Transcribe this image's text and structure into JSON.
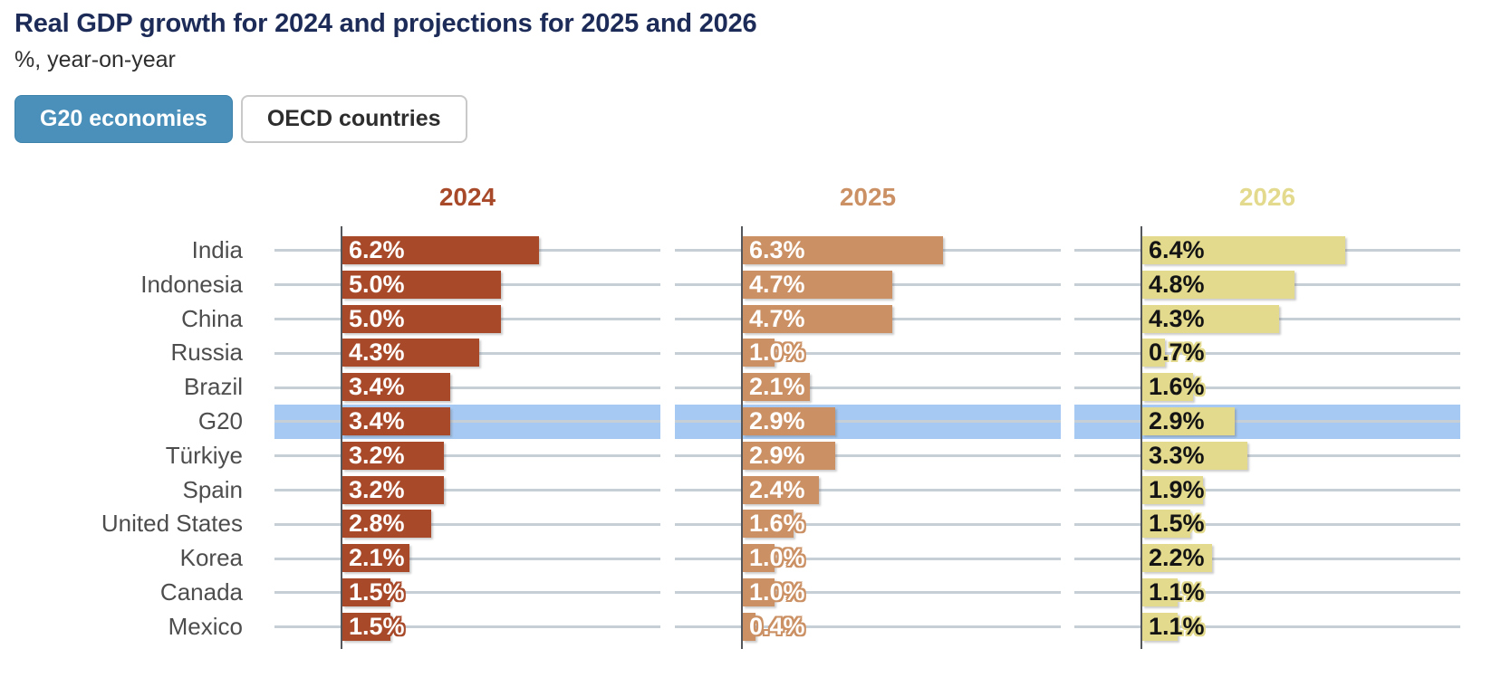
{
  "header": {
    "title": "Real GDP growth for 2024 and projections for 2025 and 2026",
    "subtitle": "%, year-on-year",
    "tabs": [
      {
        "label": "G20 economies",
        "active": true
      },
      {
        "label": "OECD countries",
        "active": false
      }
    ]
  },
  "chart_data": {
    "type": "bar",
    "orientation": "horizontal",
    "unit": "%",
    "categories": [
      "India",
      "Indonesia",
      "China",
      "Russia",
      "Brazil",
      "G20",
      "Türkiye",
      "Spain",
      "United States",
      "Korea",
      "Canada",
      "Mexico"
    ],
    "highlighted_category": "G20",
    "highlight_color": "#a6c9f3",
    "grid": true,
    "legend_position": "column-headers",
    "series": [
      {
        "name": "2024",
        "color": "#a84a2a",
        "label_text_color": "#ffffff",
        "values": [
          6.2,
          5.0,
          5.0,
          4.3,
          3.4,
          3.4,
          3.2,
          3.2,
          2.8,
          2.1,
          1.5,
          1.5
        ]
      },
      {
        "name": "2025",
        "color": "#cb9164",
        "label_text_color": "#ffffff",
        "values": [
          6.3,
          4.7,
          4.7,
          1.0,
          2.1,
          2.9,
          2.9,
          2.4,
          1.6,
          1.0,
          1.0,
          0.4
        ]
      },
      {
        "name": "2026",
        "color": "#e3da8d",
        "label_text_color": "#141414",
        "values": [
          6.4,
          4.8,
          4.3,
          0.7,
          1.6,
          2.9,
          3.3,
          1.9,
          1.5,
          2.2,
          1.1,
          1.1
        ]
      }
    ],
    "value_label_format": "{value}%",
    "xlim": [
      0,
      10
    ]
  }
}
